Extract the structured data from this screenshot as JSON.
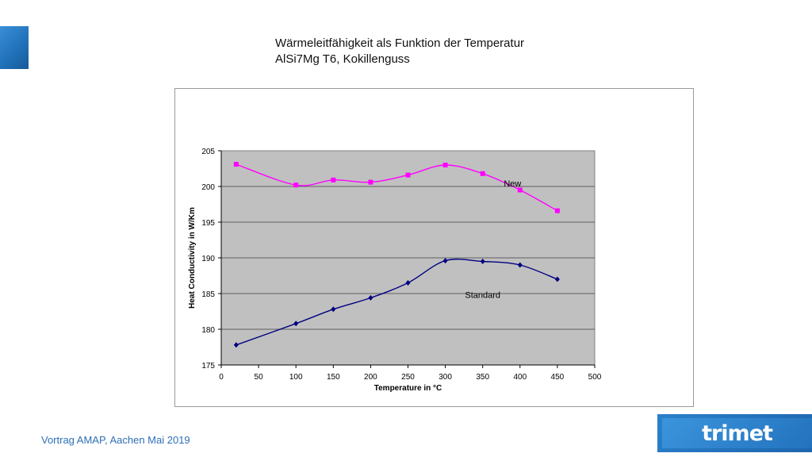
{
  "slide": {
    "title_line1": "Wärmeleitfähigkeit als Funktion der Temperatur",
    "title_line2": "AlSi7Mg T6, Kokillenguss",
    "footer": "Vortrag AMAP, Aachen Mai 2019",
    "logo": "trimet"
  },
  "colors": {
    "accent": "#2a7fcc",
    "plot_background": "#c0c0c0",
    "new_series": "#ff00ff",
    "standard_series": "#000080"
  },
  "chart_data": {
    "type": "line",
    "title": "",
    "xlabel": "Temperature in °C",
    "ylabel": "Heat Conductivity in W/Km",
    "xlim": [
      0,
      500
    ],
    "ylim": [
      175,
      205
    ],
    "x_ticks": [
      "0",
      "50",
      "100",
      "150",
      "200",
      "250",
      "300",
      "350",
      "400",
      "450",
      "500"
    ],
    "y_ticks": [
      "175",
      "180",
      "185",
      "190",
      "195",
      "200",
      "205"
    ],
    "grid": true,
    "legend": "none",
    "series": [
      {
        "name": "New",
        "marker": "square",
        "x": [
          20,
          100,
          150,
          200,
          250,
          300,
          350,
          400,
          450
        ],
        "y": [
          203.1,
          200.2,
          200.9,
          200.6,
          201.6,
          203.0,
          201.8,
          199.5,
          196.6
        ]
      },
      {
        "name": "Standard",
        "marker": "diamond",
        "x": [
          20,
          100,
          150,
          200,
          250,
          300,
          350,
          400,
          450
        ],
        "y": [
          177.8,
          180.8,
          182.8,
          184.4,
          186.5,
          189.6,
          189.5,
          189.0,
          187.0
        ]
      }
    ]
  }
}
